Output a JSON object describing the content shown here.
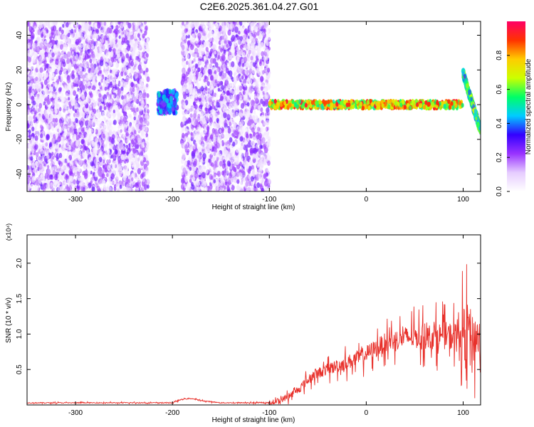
{
  "figure": {
    "title": "C2E6.2025.361.04.27.G01"
  },
  "chart_data": [
    {
      "type": "heatmap",
      "xlabel": "Height of straight line (km)",
      "ylabel": "Frequency (Hz)",
      "xlim": [
        -350,
        118
      ],
      "ylim": [
        -50,
        48
      ],
      "xticks": [
        -300,
        -200,
        -100,
        0,
        100
      ],
      "yticks": [
        -40,
        -20,
        0,
        20,
        40
      ],
      "colorbar": {
        "label": "Normalized spectral amplitude",
        "range": [
          0.0,
          1.0
        ],
        "ticks": [
          0.0,
          0.2,
          0.4,
          0.6,
          0.8
        ],
        "colormap": [
          "#ffffff",
          "#e6ccff",
          "#9933ff",
          "#3300ff",
          "#00ccff",
          "#00ff66",
          "#ccff00",
          "#ffcc00",
          "#ff3300",
          "#ff0066"
        ]
      },
      "regions": [
        {
          "x": [
            -350,
            -225
          ],
          "y": [
            -50,
            48
          ],
          "amplitude": 0.15,
          "pattern": "noise"
        },
        {
          "x": [
            -215,
            -195
          ],
          "y": [
            -5,
            8
          ],
          "amplitude": 0.45,
          "pattern": "blob"
        },
        {
          "x": [
            -190,
            -100
          ],
          "y": [
            -50,
            48
          ],
          "amplitude": 0.15,
          "pattern": "noise"
        },
        {
          "x": [
            -100,
            100
          ],
          "y": [
            -2,
            2
          ],
          "amplitude": 0.9,
          "pattern": "band"
        },
        {
          "x": [
            100,
            118
          ],
          "y": [
            -15,
            18
          ],
          "amplitude": 0.7,
          "pattern": "diagonal"
        }
      ]
    },
    {
      "type": "line",
      "xlabel": "Height of straight line (km)",
      "ylabel": "SNR (10 * v/v)",
      "scale_label": "(x10⁴)",
      "xlim": [
        -350,
        118
      ],
      "ylim": [
        0.0,
        2.4
      ],
      "xticks": [
        -300,
        -200,
        -100,
        0,
        100
      ],
      "yticks": [
        0.5,
        1.0,
        1.5,
        2.0
      ],
      "line_color": "#e8302a",
      "series": [
        {
          "x": [
            -350,
            -300,
            -250,
            -200,
            -190,
            -180,
            -170,
            -150,
            -100,
            -90,
            -80,
            -70,
            -60,
            -50,
            -40,
            -30,
            -20,
            -10,
            0,
            10,
            20,
            30,
            40,
            50,
            60,
            70,
            80,
            90,
            100,
            105,
            110,
            115,
            118
          ],
          "values": [
            0.03,
            0.03,
            0.03,
            0.03,
            0.08,
            0.09,
            0.06,
            0.03,
            0.03,
            0.06,
            0.12,
            0.22,
            0.35,
            0.45,
            0.5,
            0.55,
            0.6,
            0.65,
            0.72,
            0.8,
            0.88,
            0.92,
            0.95,
            0.96,
            0.96,
            0.97,
            0.98,
            0.97,
            0.98,
            1.1,
            0.9,
            1.0,
            0.8
          ]
        }
      ]
    }
  ]
}
